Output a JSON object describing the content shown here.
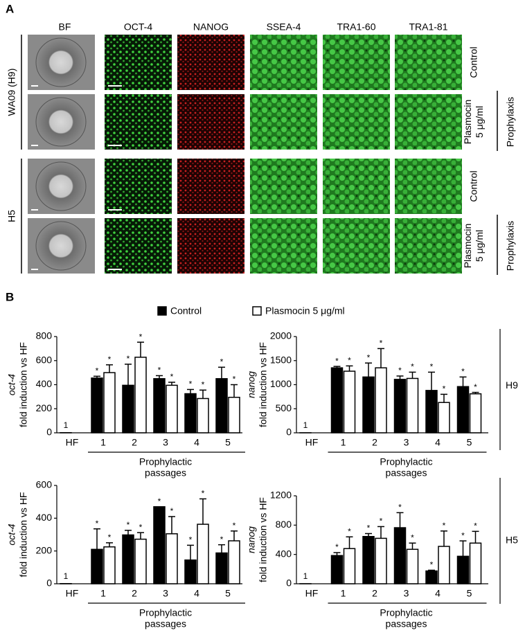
{
  "panel_a": {
    "label": "A",
    "columns": [
      "BF",
      "OCT-4",
      "NANOG",
      "SSEA-4",
      "TRA1-60",
      "TRA1-81"
    ],
    "groups": [
      {
        "name": "WA09 (H9)",
        "rows": [
          [
            "Control"
          ],
          [
            "Plasmocin",
            "5 μg/ml"
          ]
        ],
        "bracket": "Prophylaxis"
      },
      {
        "name": "H5",
        "rows": [
          [
            "Control"
          ],
          [
            "Plasmocin",
            "5 μg/ml"
          ]
        ],
        "bracket": "Prophylaxis"
      }
    ]
  },
  "panel_b": {
    "label": "B",
    "cell_lines": [
      "H9",
      "H5"
    ]
  },
  "chart_data": [
    {
      "type": "bar",
      "ylabel_gene": "oct-4",
      "ylabel": "fold induction vs HF",
      "xlabel": [
        "Prophylactic",
        "passages"
      ],
      "categories": [
        "HF",
        "1",
        "2",
        "3",
        "4",
        "5"
      ],
      "ylim": [
        0,
        800
      ],
      "yticks": [
        0,
        200,
        400,
        600,
        800
      ],
      "series": [
        {
          "name": "Control",
          "color": "#000000",
          "values": [
            1,
            455,
            395,
            450,
            325,
            450
          ],
          "errors": [
            0,
            15,
            175,
            25,
            35,
            95
          ],
          "significance": [
            null,
            "*",
            "*",
            "*",
            "*",
            "*"
          ]
        },
        {
          "name": "Plasmocin 5 μg/ml",
          "color": "#ffffff",
          "values": [
            null,
            500,
            628,
            395,
            285,
            295
          ],
          "errors": [
            null,
            65,
            125,
            25,
            70,
            105
          ],
          "significance": [
            null,
            "*",
            "*",
            "*",
            "*",
            "*"
          ]
        }
      ]
    },
    {
      "type": "bar",
      "ylabel_gene": "nanog",
      "ylabel": "fold induction vs HF",
      "xlabel": [
        "Prophylactic",
        "passages"
      ],
      "categories": [
        "HF",
        "1",
        "2",
        "3",
        "4",
        "5"
      ],
      "ylim": [
        0,
        2000
      ],
      "yticks": [
        0,
        500,
        1000,
        1500,
        2000
      ],
      "series": [
        {
          "name": "Control",
          "color": "#000000",
          "values": [
            1,
            1350,
            1160,
            1110,
            880,
            960
          ],
          "errors": [
            0,
            30,
            290,
            70,
            380,
            200
          ],
          "significance": [
            null,
            "*",
            "*",
            "*",
            "*",
            "*"
          ]
        },
        {
          "name": "Plasmocin 5 μg/ml",
          "color": "#ffffff",
          "values": [
            null,
            1280,
            1350,
            1130,
            630,
            810
          ],
          "errors": [
            null,
            110,
            400,
            130,
            170,
            30
          ],
          "significance": [
            null,
            "*",
            "*",
            "*",
            "*",
            "*"
          ]
        }
      ]
    },
    {
      "type": "bar",
      "ylabel_gene": "oct-4",
      "ylabel": "fold induction vs HF",
      "xlabel": [
        "Prophylactic",
        "passages"
      ],
      "categories": [
        "HF",
        "1",
        "2",
        "3",
        "4",
        "5"
      ],
      "ylim": [
        0,
        600
      ],
      "yticks": [
        0,
        200,
        400,
        600
      ],
      "series": [
        {
          "name": "Control",
          "color": "#000000",
          "values": [
            1,
            210,
            298,
            470,
            145,
            188
          ],
          "errors": [
            0,
            125,
            28,
            0,
            90,
            50
          ],
          "significance": [
            null,
            "*",
            "*",
            "*",
            "*",
            "*"
          ]
        },
        {
          "name": "Plasmocin 5 μg/ml",
          "color": "#ffffff",
          "values": [
            null,
            225,
            272,
            305,
            363,
            262
          ],
          "errors": [
            null,
            25,
            40,
            105,
            155,
            60
          ],
          "significance": [
            null,
            "*",
            "*",
            "*",
            "*",
            "*"
          ]
        }
      ]
    },
    {
      "type": "bar",
      "ylabel_gene": "nanog",
      "ylabel": "fold induction vs HF",
      "xlabel": [
        "Prophylactic",
        "passages"
      ],
      "categories": [
        "HF",
        "1",
        "2",
        "3",
        "4",
        "5"
      ],
      "ylim": [
        0,
        1200
      ],
      "yticks": [
        0,
        400,
        800,
        1200
      ],
      "series": [
        {
          "name": "Control",
          "color": "#000000",
          "values": [
            1,
            385,
            645,
            765,
            175,
            375
          ],
          "errors": [
            0,
            40,
            40,
            205,
            10,
            210
          ],
          "significance": [
            null,
            "*",
            "*",
            "*",
            "*",
            "*"
          ]
        },
        {
          "name": "Plasmocin 5 μg/ml",
          "color": "#ffffff",
          "values": [
            null,
            480,
            620,
            470,
            510,
            555
          ],
          "errors": [
            null,
            160,
            160,
            85,
            210,
            160
          ],
          "significance": [
            null,
            "*",
            "*",
            "*",
            "*",
            "*"
          ]
        }
      ]
    }
  ]
}
